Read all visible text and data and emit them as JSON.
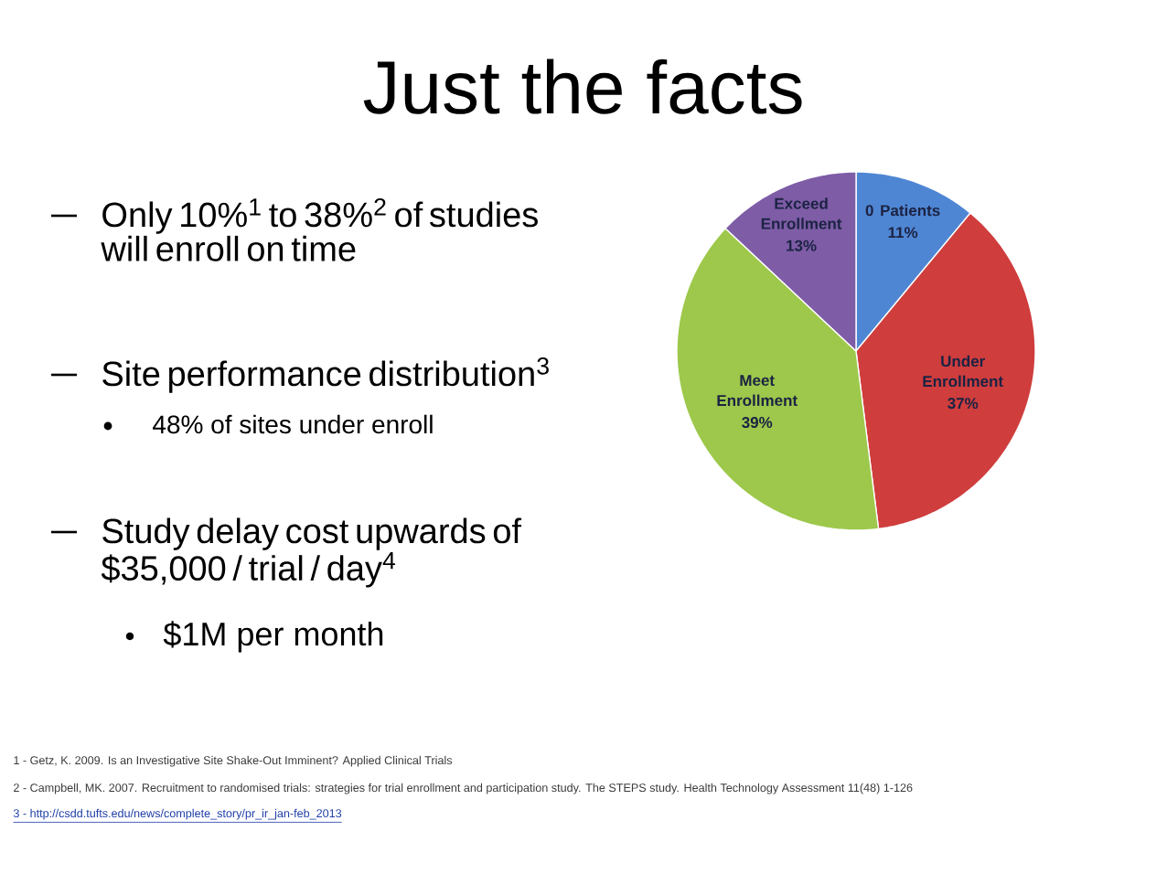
{
  "chart_data": {
    "type": "pie",
    "title": "Just the facts",
    "categories": [
      "0 Patients",
      "Under Enrollment",
      "Meet Enrollment",
      "Exceed Enrollment"
    ],
    "values": [
      11,
      37,
      39,
      13
    ],
    "colors": [
      "#4f86d4",
      "#cf3d3d",
      "#9dc84b",
      "#7e5ca6"
    ],
    "value_labels": [
      "11%",
      "37%",
      "39%",
      "13%"
    ],
    "annotations": [
      "Only 10%$^{1}$ to 38%$^{2}$ of studies will enroll on time",
      "Site performance distribution$^{3}$",
      "48% of sites under enroll",
      "Study delay cost upwards of $35,000 / trial / day$^{4}$",
      "$1M per month",
      "1 - Getz, K. 2009. Is an Investigative Site Shake-Out Imminent? Applied Clinical Trials",
      "2 - Campbell, MK. 2007. Recruitment to randomised trials: strategies for trial enrollment and participation study. The STEPS study. Health Technology Assessment 11(48) 1-126",
      "3 - http://csdd.tufts.edu/news/complete_story/pr_ir_jan-feb_2013"
    ]
  }
}
